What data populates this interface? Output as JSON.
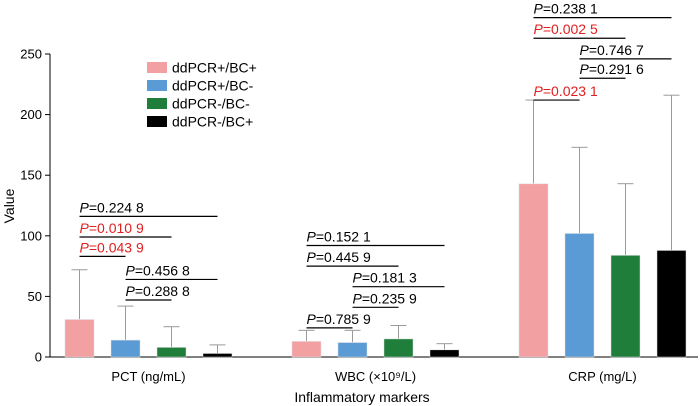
{
  "chart_data": {
    "type": "bar",
    "ylabel": "Value",
    "xlabel": "Inflammatory markers",
    "ylim": [
      0,
      250
    ],
    "yticks": [
      0,
      50,
      100,
      150,
      200,
      250
    ],
    "legend_position": "top-left",
    "categories": [
      "PCT (ng/mL)",
      "WBC (×10⁹/L)",
      "CRP (mg/L)"
    ],
    "series": [
      {
        "name": "ddPCR+/BC+",
        "color": "#f2a0a2",
        "values": [
          31,
          13,
          143
        ],
        "error_upper": [
          72,
          22,
          212
        ]
      },
      {
        "name": "ddPCR+/BC-",
        "color": "#5b9bd5",
        "values": [
          14,
          12,
          102
        ],
        "error_upper": [
          42,
          22,
          173
        ]
      },
      {
        "name": "ddPCR-/BC-",
        "color": "#1e7e3a",
        "values": [
          8,
          15,
          84
        ],
        "error_upper": [
          25,
          26,
          143
        ]
      },
      {
        "name": "ddPCR-/BC+",
        "color": "#000000",
        "values": [
          3,
          6,
          88
        ],
        "error_upper": [
          10,
          11,
          216
        ]
      }
    ],
    "annotations": [
      {
        "category": 0,
        "from": 0,
        "to": 3,
        "level_value": 116,
        "text": "=0.224 8",
        "color": "#000000"
      },
      {
        "category": 0,
        "from": 0,
        "to": 2,
        "level_value": 99,
        "text": "=0.010 9",
        "color": "#e02020"
      },
      {
        "category": 0,
        "from": 0,
        "to": 1,
        "level_value": 83,
        "text": "=0.043 9",
        "color": "#e02020"
      },
      {
        "category": 0,
        "from": 1,
        "to": 3,
        "level_value": 64,
        "text": "=0.456 8",
        "color": "#000000"
      },
      {
        "category": 0,
        "from": 1,
        "to": 2,
        "level_value": 47,
        "text": "=0.288 8",
        "color": "#000000"
      },
      {
        "category": 1,
        "from": 0,
        "to": 3,
        "level_value": 92,
        "text": "=0.152 1",
        "color": "#000000"
      },
      {
        "category": 1,
        "from": 0,
        "to": 2,
        "level_value": 75,
        "text": "=0.445 9",
        "color": "#000000"
      },
      {
        "category": 1,
        "from": 1,
        "to": 3,
        "level_value": 58,
        "text": "=0.181 3",
        "color": "#000000"
      },
      {
        "category": 1,
        "from": 1,
        "to": 2,
        "level_value": 41,
        "text": "=0.235 9",
        "color": "#000000"
      },
      {
        "category": 1,
        "from": 0,
        "to": 1,
        "level_value": 24,
        "text": "=0.785 9",
        "color": "#000000"
      },
      {
        "category": 2,
        "from": 0,
        "to": 3,
        "level_value": 280,
        "text": "=0.238 1",
        "color": "#000000"
      },
      {
        "category": 2,
        "from": 0,
        "to": 2,
        "level_value": 263,
        "text": "=0.002 5",
        "color": "#e02020"
      },
      {
        "category": 2,
        "from": 1,
        "to": 3,
        "level_value": 246,
        "text": "=0.746 7",
        "color": "#000000"
      },
      {
        "category": 2,
        "from": 1,
        "to": 2,
        "level_value": 230,
        "text": "=0.291 6",
        "color": "#000000"
      },
      {
        "category": 2,
        "from": 0,
        "to": 1,
        "level_value": 212,
        "text": "=0.023 1",
        "color": "#e02020"
      }
    ],
    "annotation_prefix": "P"
  }
}
